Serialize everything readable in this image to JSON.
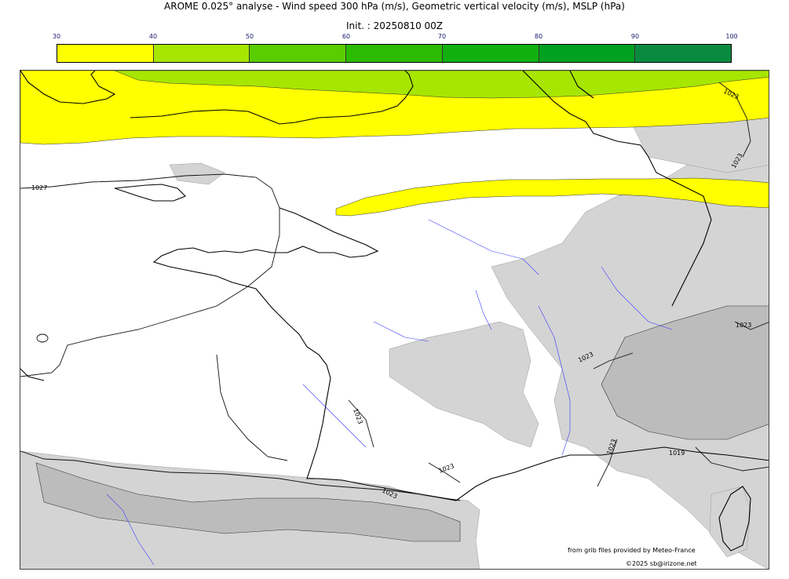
{
  "header": {
    "title": "AROME 0.025° analyse - Wind speed 300 hPa (m/s), Geometric vertical velocity (m/s), MSLP (hPa)",
    "init": "Init. : 20250810 00Z"
  },
  "colorbar": {
    "ticks": [
      "30",
      "40",
      "50",
      "60",
      "70",
      "80",
      "90",
      "100"
    ],
    "colors": [
      "#ffff00",
      "#a6e600",
      "#5acd00",
      "#2bbb00",
      "#11b011",
      "#00a020",
      "#0a8a40",
      "#0d7548"
    ]
  },
  "map": {
    "isobar_labels": [
      "1027",
      "1023",
      "1023",
      "1023",
      "1023",
      "1023",
      "1023",
      "1023",
      "1023",
      "1019"
    ],
    "colors": {
      "jet_30_40": "#ffff00",
      "jet_40_50": "#a6e600",
      "relief": "#d4d4d4",
      "relief_dark": "#bcbcbc",
      "isobar": "#111111",
      "coast": "#000000",
      "river": "#3a3aff"
    }
  },
  "credits": {
    "source": "from grib files provided by Meteo-France",
    "copyright": "©2025 sb@irizone.net"
  }
}
